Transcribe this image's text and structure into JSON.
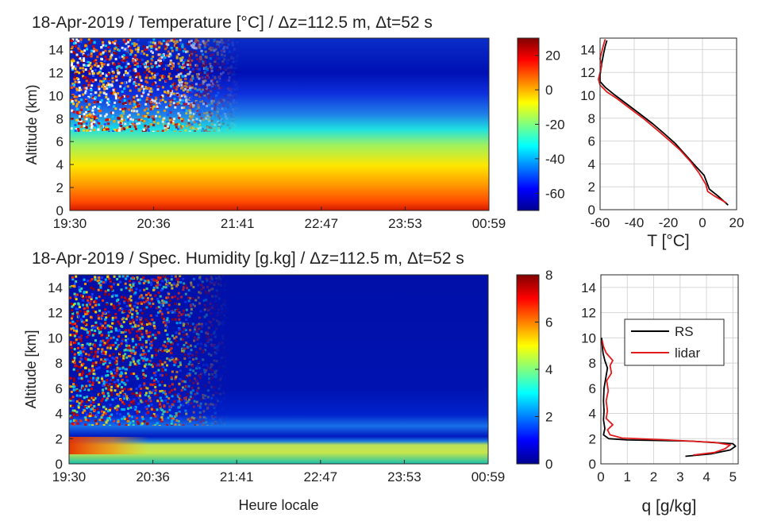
{
  "chart_data": [
    {
      "type": "heatmap",
      "title": "18-Apr-2019 / Temperature [°C] / Δz=112.5 m, Δt=52 s",
      "xlabel": "",
      "ylabel": "Altitude (km)",
      "xticks": [
        "19:30",
        "20:36",
        "21:41",
        "22:47",
        "23:53",
        "00:59"
      ],
      "yticks": [
        "0",
        "2",
        "4",
        "6",
        "8",
        "10",
        "12",
        "14"
      ],
      "ylim": [
        0,
        15
      ],
      "colorbar": {
        "ticks": [
          "20",
          "0",
          "-20",
          "-40",
          "-60"
        ],
        "range": [
          -70,
          30
        ],
        "colormap": "jet"
      }
    },
    {
      "type": "line",
      "title": "",
      "xlabel": "T [°C]",
      "ylabel": "",
      "xlim": [
        -60,
        20
      ],
      "ylim": [
        0,
        15
      ],
      "xticks": [
        "-60",
        "-40",
        "-20",
        "0",
        "20"
      ],
      "yticks": [
        "0",
        "2",
        "4",
        "6",
        "8",
        "10",
        "12",
        "14"
      ],
      "series": [
        {
          "name": "RS",
          "color": "#000000",
          "points": [
            [
              15,
              0.4
            ],
            [
              9,
              1.2
            ],
            [
              4,
              1.8
            ],
            [
              1,
              3.0
            ],
            [
              -4,
              3.8
            ],
            [
              -10,
              4.8
            ],
            [
              -16,
              5.8
            ],
            [
              -22,
              6.6
            ],
            [
              -29,
              7.5
            ],
            [
              -36,
              8.3
            ],
            [
              -44,
              9.2
            ],
            [
              -52,
              10.1
            ],
            [
              -57,
              10.7
            ],
            [
              -60,
              11.2
            ],
            [
              -60,
              11.8
            ],
            [
              -59,
              12.8
            ],
            [
              -58,
              13.6
            ],
            [
              -57,
              14.3
            ],
            [
              -56,
              14.8
            ]
          ]
        },
        {
          "name": "lidar",
          "color": "#e31a1c",
          "points": [
            [
              14,
              0.6
            ],
            [
              7,
              1.2
            ],
            [
              3,
              1.6
            ],
            [
              2,
              2.2
            ],
            [
              -2,
              3.2
            ],
            [
              -7,
              4.2
            ],
            [
              -13,
              5.2
            ],
            [
              -19,
              6.0
            ],
            [
              -26,
              6.9
            ],
            [
              -34,
              7.9
            ],
            [
              -42,
              8.8
            ],
            [
              -50,
              9.7
            ],
            [
              -56,
              10.3
            ],
            [
              -60,
              10.9
            ],
            [
              -61,
              11.4
            ],
            [
              -60,
              12.0
            ],
            [
              -59,
              12.6
            ],
            [
              -60,
              13.2
            ],
            [
              -59,
              13.8
            ],
            [
              -58,
              14.4
            ],
            [
              -57,
              14.9
            ]
          ]
        }
      ]
    },
    {
      "type": "heatmap",
      "title": "18-Apr-2019 / Spec. Humidity [g.kg] / Δz=112.5 m, Δt=52 s",
      "xlabel": "Heure locale",
      "ylabel": "Altitude [km]",
      "xticks": [
        "19:30",
        "20:36",
        "21:41",
        "22:47",
        "23:53",
        "00:59"
      ],
      "yticks": [
        "0",
        "2",
        "4",
        "6",
        "8",
        "10",
        "12",
        "14"
      ],
      "ylim": [
        0,
        15
      ],
      "colorbar": {
        "ticks": [
          "8",
          "6",
          "4",
          "2",
          "0"
        ],
        "range": [
          0,
          8
        ],
        "colormap": "jet"
      }
    },
    {
      "type": "line",
      "title": "",
      "xlabel": "q [g/kg]",
      "ylabel": "",
      "xlim": [
        0,
        5.2
      ],
      "ylim": [
        0,
        15
      ],
      "xticks": [
        "0",
        "1",
        "2",
        "3",
        "4",
        "5"
      ],
      "yticks": [
        "0",
        "2",
        "4",
        "6",
        "8",
        "10",
        "12",
        "14"
      ],
      "legend": {
        "placement": "upper-center",
        "entries": [
          "RS",
          "lidar"
        ]
      },
      "series": [
        {
          "name": "RS",
          "color": "#000000",
          "points": [
            [
              3.2,
              0.6
            ],
            [
              4.2,
              0.8
            ],
            [
              4.9,
              1.1
            ],
            [
              5.1,
              1.4
            ],
            [
              5.0,
              1.6
            ],
            [
              3.4,
              1.8
            ],
            [
              1.0,
              1.9
            ],
            [
              0.3,
              2.0
            ],
            [
              0.1,
              2.3
            ],
            [
              0.15,
              2.8
            ],
            [
              0.1,
              3.5
            ],
            [
              0.12,
              4.2
            ],
            [
              0.1,
              5.0
            ],
            [
              0.12,
              6.0
            ],
            [
              0.2,
              7.0
            ],
            [
              0.25,
              7.6
            ],
            [
              0.15,
              8.2
            ],
            [
              0.08,
              8.8
            ],
            [
              0.05,
              9.4
            ],
            [
              0.03,
              10.0
            ]
          ]
        },
        {
          "name": "lidar",
          "color": "#e31a1c",
          "points": [
            [
              3.5,
              0.7
            ],
            [
              4.3,
              0.9
            ],
            [
              4.7,
              1.2
            ],
            [
              4.9,
              1.5
            ],
            [
              4.3,
              1.7
            ],
            [
              2.5,
              1.9
            ],
            [
              0.8,
              2.05
            ],
            [
              0.35,
              2.3
            ],
            [
              0.25,
              2.7
            ],
            [
              0.45,
              3.1
            ],
            [
              0.2,
              3.6
            ],
            [
              0.25,
              4.2
            ],
            [
              0.2,
              5.0
            ],
            [
              0.28,
              5.8
            ],
            [
              0.22,
              6.6
            ],
            [
              0.4,
              7.2
            ],
            [
              0.35,
              7.8
            ],
            [
              0.45,
              8.2
            ],
            [
              0.2,
              8.8
            ],
            [
              0.1,
              9.3
            ],
            [
              0.05,
              9.8
            ]
          ]
        }
      ]
    }
  ]
}
